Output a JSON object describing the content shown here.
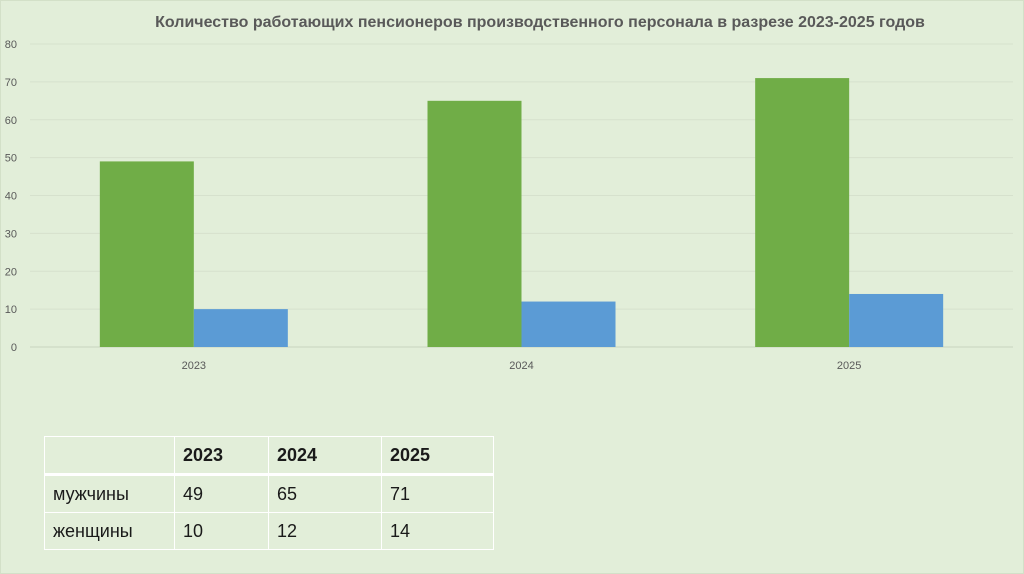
{
  "chart_data": {
    "type": "bar",
    "title": "Количество работающих пенсионеров производственного персонала в разрезе 2023-2025 годов",
    "categories": [
      "2023",
      "2024",
      "2025"
    ],
    "series": [
      {
        "name": "мужчины",
        "values": [
          49,
          65,
          71
        ],
        "color": "#70ad47"
      },
      {
        "name": "женщины",
        "values": [
          10,
          12,
          14
        ],
        "color": "#5b9bd5"
      }
    ],
    "ylim": [
      0,
      80
    ],
    "yticks": [
      0,
      10,
      20,
      30,
      40,
      50,
      60,
      70,
      80
    ],
    "grid": true,
    "legend": "none"
  },
  "table": {
    "header": [
      "",
      "2023",
      "2024",
      "2025"
    ],
    "rows": [
      [
        "мужчины",
        "49",
        "65",
        "71"
      ],
      [
        "женщины",
        "10",
        "12",
        "14"
      ]
    ]
  }
}
